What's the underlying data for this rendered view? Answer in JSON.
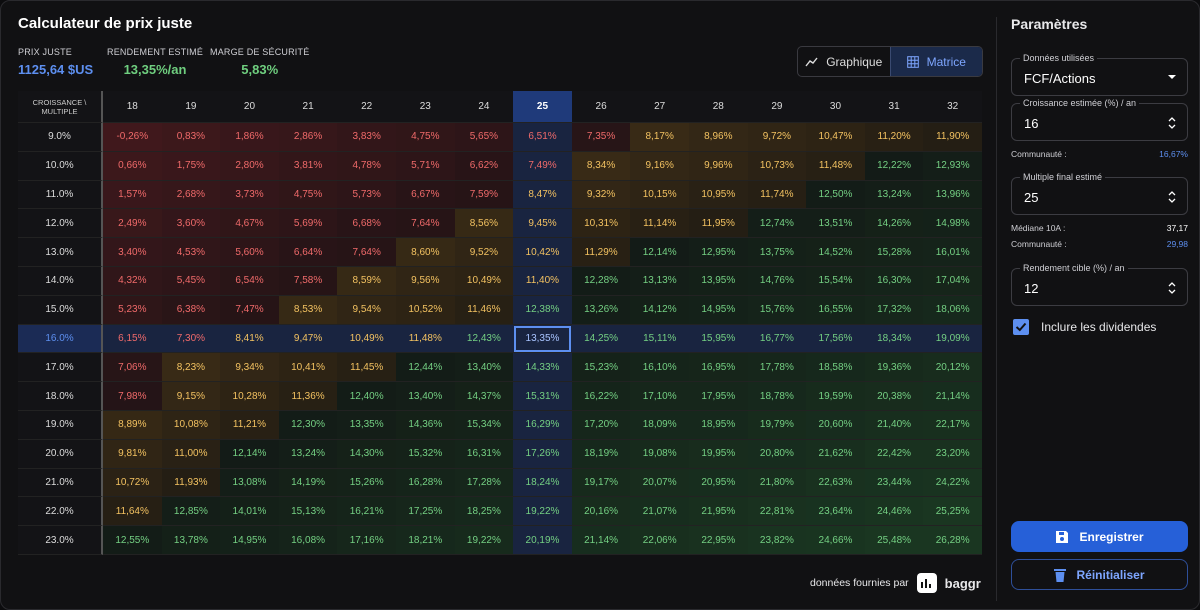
{
  "header": {
    "title": "Calculateur de prix juste"
  },
  "stats": [
    {
      "label": "PRIX JUSTE",
      "value": "1125,64 $US"
    },
    {
      "label": "RENDEMENT ESTIMÉ",
      "value": "13,35%/an"
    },
    {
      "label": "MARGE DE SÉCURITÉ",
      "value": "5,83%"
    }
  ],
  "view_toggle": {
    "options": [
      "Graphique",
      "Matrice"
    ],
    "active": 1
  },
  "table": {
    "corner": "CROISSANCE \\ MULTIPLE",
    "columns": [
      18,
      19,
      20,
      21,
      22,
      23,
      24,
      25,
      26,
      27,
      28,
      29,
      30,
      31,
      32
    ],
    "rows": [
      {
        "label": "9.0%",
        "cells": [
          "-0,26%",
          "0,83%",
          "1,86%",
          "2,86%",
          "3,83%",
          "4,75%",
          "5,65%",
          "6,51%",
          "7,35%",
          "8,17%",
          "8,96%",
          "9,72%",
          "10,47%",
          "11,20%",
          "11,90%"
        ]
      },
      {
        "label": "10.0%",
        "cells": [
          "0,66%",
          "1,75%",
          "2,80%",
          "3,81%",
          "4,78%",
          "5,71%",
          "6,62%",
          "7,49%",
          "8,34%",
          "9,16%",
          "9,96%",
          "10,73%",
          "11,48%",
          "12,22%",
          "12,93%"
        ]
      },
      {
        "label": "11.0%",
        "cells": [
          "1,57%",
          "2,68%",
          "3,73%",
          "4,75%",
          "5,73%",
          "6,67%",
          "7,59%",
          "8,47%",
          "9,32%",
          "10,15%",
          "10,95%",
          "11,74%",
          "12,50%",
          "13,24%",
          "13,96%"
        ]
      },
      {
        "label": "12.0%",
        "cells": [
          "2,49%",
          "3,60%",
          "4,67%",
          "5,69%",
          "6,68%",
          "7,64%",
          "8,56%",
          "9,45%",
          "10,31%",
          "11,14%",
          "11,95%",
          "12,74%",
          "13,51%",
          "14,26%",
          "14,98%"
        ]
      },
      {
        "label": "13.0%",
        "cells": [
          "3,40%",
          "4,53%",
          "5,60%",
          "6,64%",
          "7,64%",
          "8,60%",
          "9,52%",
          "10,42%",
          "11,29%",
          "12,14%",
          "12,95%",
          "13,75%",
          "14,52%",
          "15,28%",
          "16,01%"
        ]
      },
      {
        "label": "14.0%",
        "cells": [
          "4,32%",
          "5,45%",
          "6,54%",
          "7,58%",
          "8,59%",
          "9,56%",
          "10,49%",
          "11,40%",
          "12,28%",
          "13,13%",
          "13,95%",
          "14,76%",
          "15,54%",
          "16,30%",
          "17,04%"
        ]
      },
      {
        "label": "15.0%",
        "cells": [
          "5,23%",
          "6,38%",
          "7,47%",
          "8,53%",
          "9,54%",
          "10,52%",
          "11,46%",
          "12,38%",
          "13,26%",
          "14,12%",
          "14,95%",
          "15,76%",
          "16,55%",
          "17,32%",
          "18,06%"
        ]
      },
      {
        "label": "16.0%",
        "cells": [
          "6,15%",
          "7,30%",
          "8,41%",
          "9,47%",
          "10,49%",
          "11,48%",
          "12,43%",
          "13,35%",
          "14,25%",
          "15,11%",
          "15,95%",
          "16,77%",
          "17,56%",
          "18,34%",
          "19,09%"
        ]
      },
      {
        "label": "17.0%",
        "cells": [
          "7,06%",
          "8,23%",
          "9,34%",
          "10,41%",
          "11,45%",
          "12,44%",
          "13,40%",
          "14,33%",
          "15,23%",
          "16,10%",
          "16,95%",
          "17,78%",
          "18,58%",
          "19,36%",
          "20,12%"
        ]
      },
      {
        "label": "18.0%",
        "cells": [
          "7,98%",
          "9,15%",
          "10,28%",
          "11,36%",
          "12,40%",
          "13,40%",
          "14,37%",
          "15,31%",
          "16,22%",
          "17,10%",
          "17,95%",
          "18,78%",
          "19,59%",
          "20,38%",
          "21,14%"
        ]
      },
      {
        "label": "19.0%",
        "cells": [
          "8,89%",
          "10,08%",
          "11,21%",
          "12,30%",
          "13,35%",
          "14,36%",
          "15,34%",
          "16,29%",
          "17,20%",
          "18,09%",
          "18,95%",
          "19,79%",
          "20,60%",
          "21,40%",
          "22,17%"
        ]
      },
      {
        "label": "20.0%",
        "cells": [
          "9,81%",
          "11,00%",
          "12,14%",
          "13,24%",
          "14,30%",
          "15,32%",
          "16,31%",
          "17,26%",
          "18,19%",
          "19,08%",
          "19,95%",
          "20,80%",
          "21,62%",
          "22,42%",
          "23,20%"
        ]
      },
      {
        "label": "21.0%",
        "cells": [
          "10,72%",
          "11,93%",
          "13,08%",
          "14,19%",
          "15,26%",
          "16,28%",
          "17,28%",
          "18,24%",
          "19,17%",
          "20,07%",
          "20,95%",
          "21,80%",
          "22,63%",
          "23,44%",
          "24,22%"
        ]
      },
      {
        "label": "22.0%",
        "cells": [
          "11,64%",
          "12,85%",
          "14,01%",
          "15,13%",
          "16,21%",
          "17,25%",
          "18,25%",
          "19,22%",
          "20,16%",
          "21,07%",
          "21,95%",
          "22,81%",
          "23,64%",
          "24,46%",
          "25,25%"
        ]
      },
      {
        "label": "23.0%",
        "cells": [
          "12,55%",
          "13,78%",
          "14,95%",
          "16,08%",
          "17,16%",
          "18,21%",
          "19,22%",
          "20,19%",
          "21,14%",
          "22,06%",
          "22,95%",
          "23,82%",
          "24,66%",
          "25,48%",
          "26,28%"
        ]
      }
    ]
  },
  "footer": {
    "text": "données fournies par",
    "brand": "baggr"
  },
  "sidebar": {
    "title": "Paramètres",
    "data_source": {
      "label": "Données utilisées",
      "value": "FCF/Actions"
    },
    "growth": {
      "label": "Croissance estimée (%) / an",
      "value": "16",
      "community_label": "Communauté :",
      "community_value": "16,67%"
    },
    "multiple": {
      "label": "Multiple final estimé",
      "value": "25",
      "median_label": "Médiane 10A :",
      "median_value": "37,17",
      "community_label": "Communauté :",
      "community_value": "29,98"
    },
    "target": {
      "label": "Rendement cible (%) / an",
      "value": "12"
    },
    "dividends": {
      "label": "Inclure les dividendes",
      "checked": true
    },
    "save": "Enregistrer",
    "reset": "Réinitialiser"
  }
}
